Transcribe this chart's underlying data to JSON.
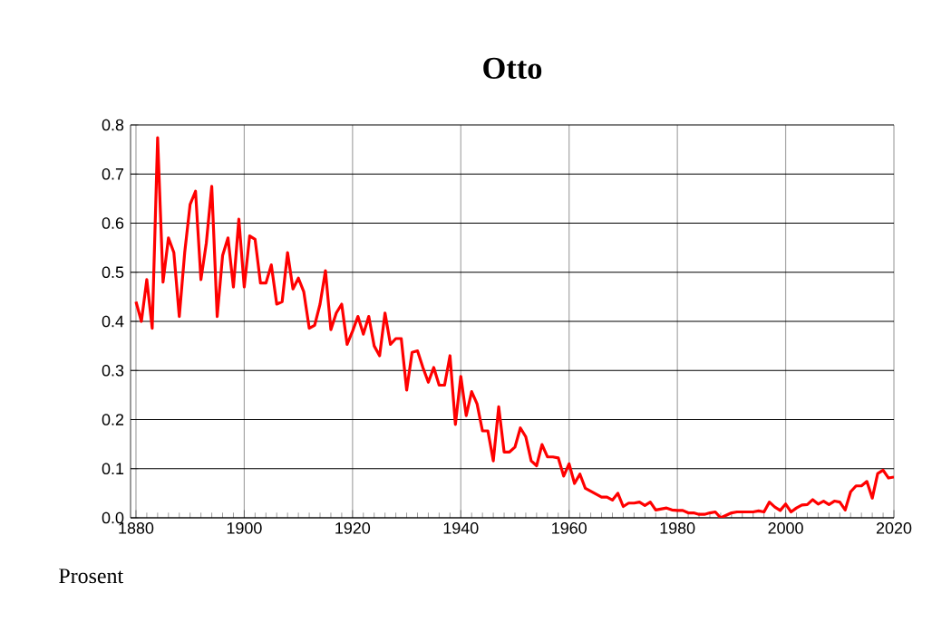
{
  "chart_data": {
    "type": "line",
    "title": "Otto",
    "ylabel": "Prosent",
    "x": [
      1880,
      1881,
      1882,
      1883,
      1884,
      1885,
      1886,
      1887,
      1888,
      1889,
      1890,
      1891,
      1892,
      1893,
      1894,
      1895,
      1896,
      1897,
      1898,
      1899,
      1900,
      1901,
      1902,
      1903,
      1904,
      1905,
      1906,
      1907,
      1908,
      1909,
      1910,
      1911,
      1912,
      1913,
      1914,
      1915,
      1916,
      1917,
      1918,
      1919,
      1920,
      1921,
      1922,
      1923,
      1924,
      1925,
      1926,
      1927,
      1928,
      1929,
      1930,
      1931,
      1932,
      1933,
      1934,
      1935,
      1936,
      1937,
      1938,
      1939,
      1940,
      1941,
      1942,
      1943,
      1944,
      1945,
      1946,
      1947,
      1948,
      1949,
      1950,
      1951,
      1952,
      1953,
      1954,
      1955,
      1956,
      1957,
      1958,
      1959,
      1960,
      1961,
      1962,
      1963,
      1964,
      1965,
      1966,
      1967,
      1968,
      1969,
      1970,
      1971,
      1972,
      1973,
      1974,
      1975,
      1976,
      1977,
      1978,
      1979,
      1980,
      1981,
      1982,
      1983,
      1984,
      1985,
      1986,
      1987,
      1988,
      1989,
      1990,
      1991,
      1992,
      1993,
      1994,
      1995,
      1996,
      1997,
      1998,
      1999,
      2000,
      2001,
      2002,
      2003,
      2004,
      2005,
      2006,
      2007,
      2008,
      2009,
      2010,
      2011,
      2012,
      2013,
      2014,
      2015,
      2016,
      2017,
      2018,
      2019,
      2020
    ],
    "series": [
      {
        "color": "#ff0000",
        "values": [
          0.44,
          0.4,
          0.485,
          0.386,
          0.774,
          0.48,
          0.57,
          0.54,
          0.41,
          0.54,
          0.638,
          0.665,
          0.485,
          0.56,
          0.675,
          0.41,
          0.534,
          0.57,
          0.47,
          0.608,
          0.47,
          0.574,
          0.567,
          0.478,
          0.478,
          0.515,
          0.435,
          0.44,
          0.54,
          0.466,
          0.488,
          0.46,
          0.386,
          0.392,
          0.435,
          0.503,
          0.383,
          0.417,
          0.435,
          0.353,
          0.38,
          0.41,
          0.374,
          0.41,
          0.35,
          0.33,
          0.417,
          0.353,
          0.365,
          0.365,
          0.26,
          0.337,
          0.34,
          0.306,
          0.276,
          0.306,
          0.27,
          0.27,
          0.33,
          0.19,
          0.288,
          0.208,
          0.257,
          0.232,
          0.177,
          0.177,
          0.116,
          0.226,
          0.134,
          0.134,
          0.144,
          0.183,
          0.165,
          0.116,
          0.106,
          0.149,
          0.124,
          0.124,
          0.122,
          0.085,
          0.11,
          0.07,
          0.089,
          0.06,
          0.054,
          0.048,
          0.042,
          0.042,
          0.036,
          0.05,
          0.023,
          0.03,
          0.03,
          0.032,
          0.025,
          0.032,
          0.016,
          0.018,
          0.02,
          0.016,
          0.015,
          0.015,
          0.01,
          0.01,
          0.007,
          0.007,
          0.01,
          0.012,
          0.0,
          0.005,
          0.01,
          0.012,
          0.012,
          0.012,
          0.012,
          0.014,
          0.012,
          0.032,
          0.022,
          0.015,
          0.028,
          0.012,
          0.02,
          0.026,
          0.027,
          0.037,
          0.028,
          0.034,
          0.027,
          0.034,
          0.032,
          0.016,
          0.053,
          0.065,
          0.065,
          0.074,
          0.04,
          0.09,
          0.097,
          0.081,
          0.083
        ]
      }
    ],
    "xlim": [
      1879,
      2020
    ],
    "ylim": [
      0,
      0.8
    ],
    "xticks": [
      1880,
      1900,
      1920,
      1940,
      1960,
      1980,
      2000,
      2020
    ],
    "yticks": [
      {
        "value": 0,
        "label": "0.0"
      },
      {
        "value": 0.1,
        "label": "0.1"
      },
      {
        "value": 0.2,
        "label": "0.2"
      },
      {
        "value": 0.3,
        "label": "0.3"
      },
      {
        "value": 0.4,
        "label": "0.4"
      },
      {
        "value": 0.5,
        "label": "0.5"
      },
      {
        "value": 0.6,
        "label": "0.6"
      },
      {
        "value": 0.7,
        "label": "0.7"
      },
      {
        "value": 0.8,
        "label": "0.8"
      }
    ],
    "grid": true,
    "marker": "none",
    "line_style": "solid"
  }
}
